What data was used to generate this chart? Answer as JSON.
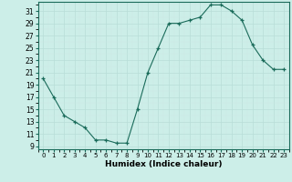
{
  "x": [
    0,
    1,
    2,
    3,
    4,
    5,
    6,
    7,
    8,
    9,
    10,
    11,
    12,
    13,
    14,
    15,
    16,
    17,
    18,
    19,
    20,
    21,
    22,
    23
  ],
  "y": [
    20,
    17,
    14,
    13,
    12,
    10,
    10,
    9.5,
    9.5,
    15,
    21,
    25,
    29,
    29,
    29.5,
    30,
    32,
    32,
    31,
    29.5,
    25.5,
    23,
    21.5,
    21.5
  ],
  "xlabel": "Humidex (Indice chaleur)",
  "ylim": [
    8.5,
    32.5
  ],
  "xlim": [
    -0.5,
    23.5
  ],
  "yticks": [
    9,
    11,
    13,
    15,
    17,
    19,
    21,
    23,
    25,
    27,
    29,
    31
  ],
  "xticks": [
    0,
    1,
    2,
    3,
    4,
    5,
    6,
    7,
    8,
    9,
    10,
    11,
    12,
    13,
    14,
    15,
    16,
    17,
    18,
    19,
    20,
    21,
    22,
    23
  ],
  "bg_color": "#cceee8",
  "line_color": "#1a6b5a",
  "grid_major_color": "#b8ddd8",
  "grid_minor_color": "#cce8e4",
  "marker": "+"
}
